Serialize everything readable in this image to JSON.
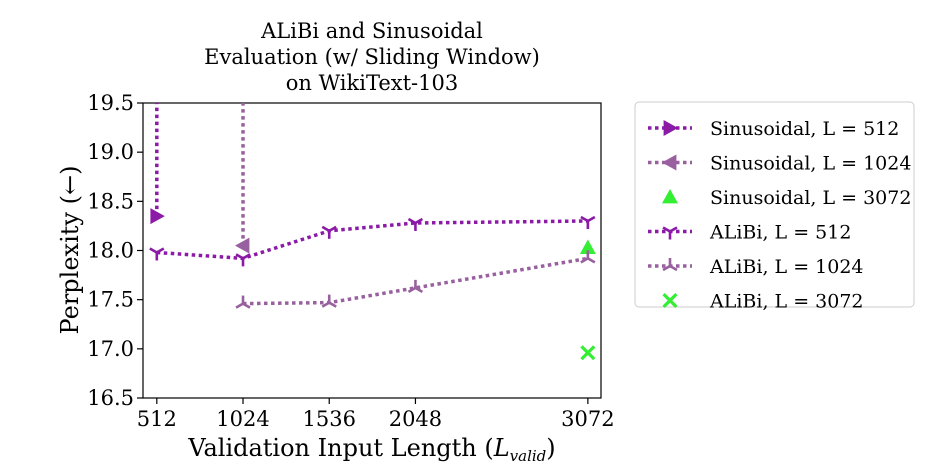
{
  "chart_data": {
    "type": "line",
    "title_lines": [
      "ALiBi and Sinusoidal",
      "Evaluation (w/ Sliding Window)",
      "on WikiText-103"
    ],
    "xlabel": "Validation Input Length (",
    "xlabel_math": "L",
    "xlabel_sub": "valid",
    "xlabel_close": ")",
    "ylabel": "Perplexity (←)",
    "x_ticks": [
      512,
      1024,
      1536,
      2048,
      3072
    ],
    "y_ticks": [
      "16.5",
      "17.0",
      "17.5",
      "18.0",
      "18.5",
      "19.0",
      "19.5"
    ],
    "xlim": [
      430,
      3150
    ],
    "ylim": [
      16.5,
      19.5
    ],
    "grid": false,
    "legend_position": "outside-right",
    "series": [
      {
        "name": "Sinusoidal, L = 512",
        "color": "#8B1BA6",
        "marker": "triangle-right",
        "line": "dotted",
        "points": [
          [
            512,
            18.35
          ],
          [
            512,
            19.6
          ]
        ]
      },
      {
        "name": "Sinusoidal, L = 1024",
        "color": "#98609E",
        "marker": "triangle-left",
        "line": "dotted",
        "points": [
          [
            1024,
            18.05
          ],
          [
            1024,
            19.6
          ]
        ]
      },
      {
        "name": "Sinusoidal, L = 3072",
        "color": "#33EE33",
        "marker": "triangle-up",
        "line": "none",
        "points": [
          [
            3072,
            18.03
          ]
        ]
      },
      {
        "name": "ALiBi, L = 512",
        "color": "#8B1BA6",
        "marker": "tri-down",
        "line": "dotted",
        "points": [
          [
            512,
            17.98
          ],
          [
            1024,
            17.92
          ],
          [
            1536,
            18.2
          ],
          [
            2048,
            18.28
          ],
          [
            3072,
            18.3
          ]
        ]
      },
      {
        "name": "ALiBi, L = 1024",
        "color": "#98609E",
        "marker": "tri-up",
        "line": "dotted",
        "points": [
          [
            1024,
            17.46
          ],
          [
            1536,
            17.47
          ],
          [
            2048,
            17.62
          ],
          [
            3072,
            17.92
          ]
        ]
      },
      {
        "name": "ALiBi, L = 3072",
        "color": "#33EE33",
        "marker": "x",
        "line": "none",
        "points": [
          [
            3072,
            16.96
          ]
        ]
      }
    ]
  }
}
